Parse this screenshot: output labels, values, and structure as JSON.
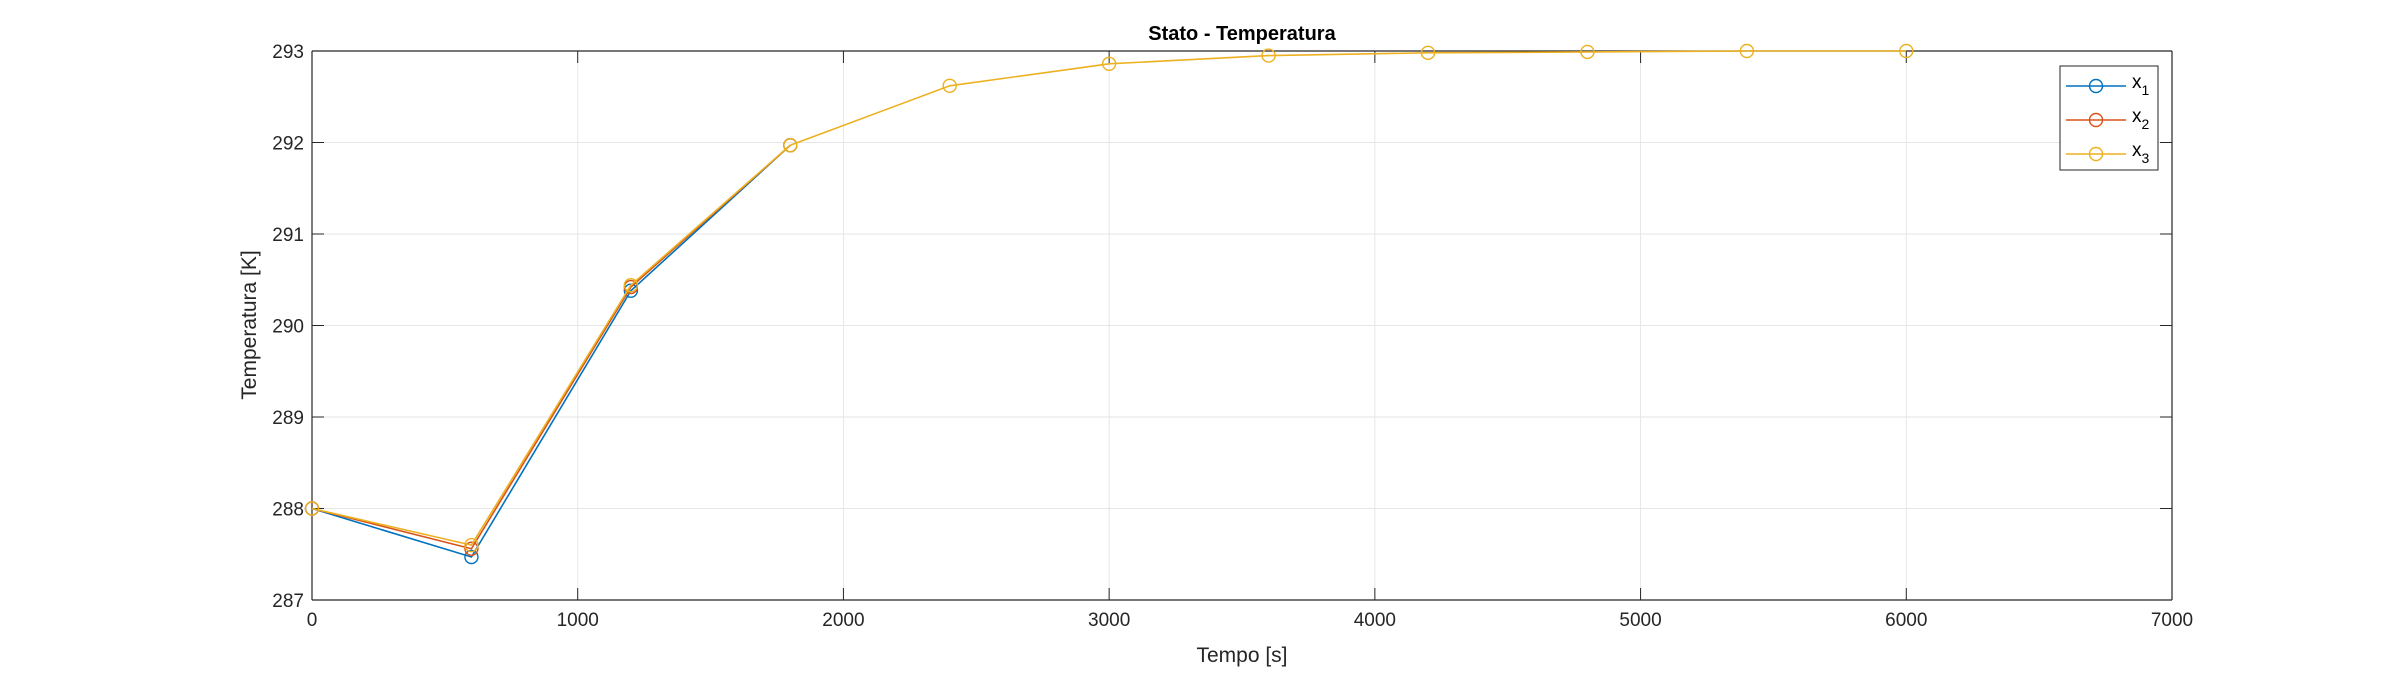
{
  "chart_data": {
    "type": "line",
    "title": "Stato - Temperatura",
    "xlabel": "Tempo [s]",
    "ylabel": "Temperatura [K]",
    "xlim": [
      0,
      7000
    ],
    "ylim": [
      287,
      293
    ],
    "xticks": [
      0,
      1000,
      2000,
      3000,
      4000,
      5000,
      6000,
      7000
    ],
    "yticks": [
      287,
      288,
      289,
      290,
      291,
      292,
      293
    ],
    "grid": true,
    "marker": "circle",
    "legend": {
      "placement": "top-right",
      "entries": [
        {
          "base": "x",
          "sub": "1"
        },
        {
          "base": "x",
          "sub": "2"
        },
        {
          "base": "x",
          "sub": "3"
        }
      ]
    },
    "series": [
      {
        "name": "x1",
        "color": "#0072BD",
        "x": [
          0,
          600,
          1200,
          1800
        ],
        "y": [
          288.0,
          287.47,
          290.38,
          291.97
        ]
      },
      {
        "name": "x2",
        "color": "#D95319",
        "x": [
          0,
          600,
          1200,
          1800
        ],
        "y": [
          288.0,
          287.56,
          290.42,
          291.97
        ]
      },
      {
        "name": "x3",
        "color": "#EDB120",
        "x": [
          0,
          600,
          1200,
          1800,
          2400,
          3000,
          3600,
          4200,
          4800,
          5400,
          6000
        ],
        "y": [
          288.0,
          287.6,
          290.44,
          291.97,
          292.62,
          292.86,
          292.95,
          292.98,
          292.99,
          293.0,
          293.0
        ]
      }
    ]
  }
}
